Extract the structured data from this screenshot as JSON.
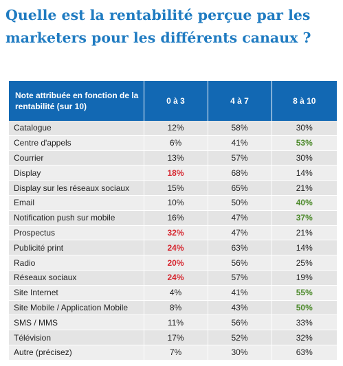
{
  "title": "Quelle est la rentabilité perçue par les marketers pour les différents canaux ?",
  "colors": {
    "title": "#1f7bc1",
    "header_bg": "#1268b3",
    "row_bg_odd": "#e4e4e4",
    "row_bg_even": "#eeeeee",
    "highlight_low": "#d6262f",
    "highlight_high": "#4d8a2c"
  },
  "chart_data": {
    "type": "table",
    "title": "Quelle est la rentabilité perçue par les marketers pour les différents canaux ?",
    "columns": [
      "Note attribuée en fonction de la rentabilité (sur 10)",
      "0 à 3",
      "4 à 7",
      "8 à 10"
    ],
    "rows": [
      {
        "label": "Catalogue",
        "values": [
          "12%",
          "58%",
          "30%"
        ],
        "highlight": [
          "",
          "",
          ""
        ]
      },
      {
        "label": "Centre d'appels",
        "values": [
          "6%",
          "41%",
          "53%"
        ],
        "highlight": [
          "",
          "",
          "high"
        ]
      },
      {
        "label": "Courrier",
        "values": [
          "13%",
          "57%",
          "30%"
        ],
        "highlight": [
          "",
          "",
          ""
        ]
      },
      {
        "label": "Display",
        "values": [
          "18%",
          "68%",
          "14%"
        ],
        "highlight": [
          "low",
          "",
          ""
        ]
      },
      {
        "label": "Display sur les réseaux sociaux",
        "values": [
          "15%",
          "65%",
          "21%"
        ],
        "highlight": [
          "",
          "",
          ""
        ]
      },
      {
        "label": "Email",
        "values": [
          "10%",
          "50%",
          "40%"
        ],
        "highlight": [
          "",
          "",
          "high"
        ]
      },
      {
        "label": "Notification push sur mobile",
        "values": [
          "16%",
          "47%",
          "37%"
        ],
        "highlight": [
          "",
          "",
          "high"
        ]
      },
      {
        "label": "Prospectus",
        "values": [
          "32%",
          "47%",
          "21%"
        ],
        "highlight": [
          "low",
          "",
          ""
        ]
      },
      {
        "label": "Publicité print",
        "values": [
          "24%",
          "63%",
          "14%"
        ],
        "highlight": [
          "low",
          "",
          ""
        ]
      },
      {
        "label": "Radio",
        "values": [
          "20%",
          "56%",
          "25%"
        ],
        "highlight": [
          "low",
          "",
          ""
        ]
      },
      {
        "label": "Réseaux sociaux",
        "values": [
          "24%",
          "57%",
          "19%"
        ],
        "highlight": [
          "low",
          "",
          ""
        ]
      },
      {
        "label": "Site Internet",
        "values": [
          "4%",
          "41%",
          "55%"
        ],
        "highlight": [
          "",
          "",
          "high"
        ]
      },
      {
        "label": "Site Mobile / Application Mobile",
        "values": [
          "8%",
          "43%",
          "50%"
        ],
        "highlight": [
          "",
          "",
          "high"
        ]
      },
      {
        "label": "SMS / MMS",
        "values": [
          "11%",
          "56%",
          "33%"
        ],
        "highlight": [
          "",
          "",
          ""
        ]
      },
      {
        "label": "Télévision",
        "values": [
          "17%",
          "52%",
          "32%"
        ],
        "highlight": [
          "",
          "",
          ""
        ]
      },
      {
        "label": "Autre (précisez)",
        "values": [
          "7%",
          "30%",
          "63%"
        ],
        "highlight": [
          "",
          "",
          ""
        ]
      }
    ]
  }
}
